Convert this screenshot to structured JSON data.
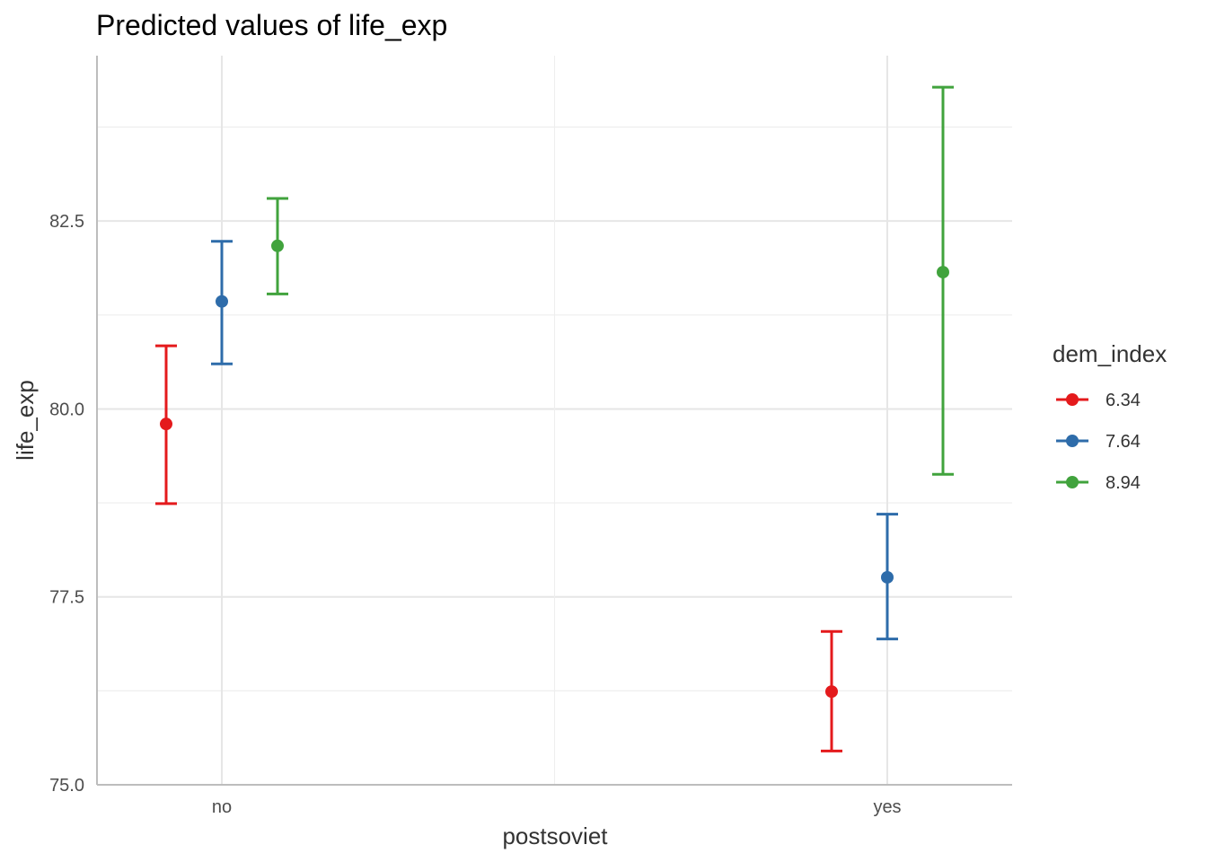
{
  "chart_data": {
    "type": "scatter",
    "title": "Predicted values of life_exp",
    "xlabel": "postsoviet",
    "ylabel": "life_exp",
    "categories": [
      "no",
      "yes"
    ],
    "ylim": [
      75.0,
      84.7
    ],
    "yticks": [
      75.0,
      77.5,
      80.0,
      82.5
    ],
    "ytick_labels": [
      "75.0",
      "77.5",
      "80.0",
      "82.5"
    ],
    "grid": true,
    "legend": {
      "title": "dem_index",
      "position": "right"
    },
    "series": [
      {
        "name": "6.34",
        "color": "#E41A1C",
        "values": [
          79.8,
          76.24
        ],
        "lower": [
          78.74,
          75.45
        ],
        "upper": [
          80.84,
          77.04
        ]
      },
      {
        "name": "7.64",
        "color": "#2E6CAA",
        "values": [
          81.43,
          77.76
        ],
        "lower": [
          80.6,
          76.94
        ],
        "upper": [
          82.23,
          78.6
        ]
      },
      {
        "name": "8.94",
        "color": "#41A33D",
        "values": [
          82.17,
          81.82
        ],
        "lower": [
          81.53,
          79.13
        ],
        "upper": [
          82.8,
          84.28
        ]
      }
    ]
  }
}
